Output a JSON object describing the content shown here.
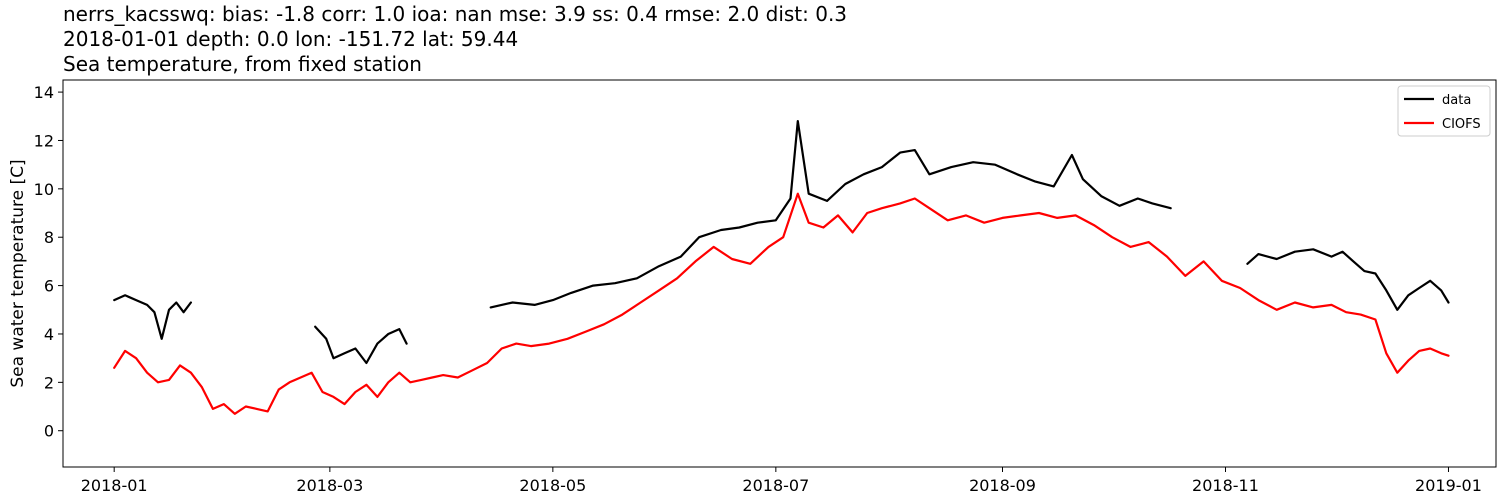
{
  "title": {
    "line1": "nerrs_kacsswq: bias: -1.8  corr: 1.0  ioa: nan  mse: 3.9  ss: 0.4  rmse: 2.0  dist: 0.3",
    "line2": "2018-01-01 depth: 0.0 lon: -151.72 lat: 59.44",
    "line3": "Sea temperature, from fixed station"
  },
  "chart_data": {
    "type": "line",
    "ylabel": "Sea water temperature [C]",
    "xlim": [
      "2017-12-18",
      "2019-01-14"
    ],
    "ylim": [
      -1.5,
      14.5
    ],
    "x_ticks": [
      "2018-01",
      "2018-03",
      "2018-05",
      "2018-07",
      "2018-09",
      "2018-11",
      "2019-01"
    ],
    "x_tick_dates": [
      "2018-01-01",
      "2018-03-01",
      "2018-05-01",
      "2018-07-01",
      "2018-09-01",
      "2018-11-01",
      "2019-01-01"
    ],
    "y_ticks": [
      0,
      2,
      4,
      6,
      8,
      10,
      12,
      14
    ],
    "grid": false,
    "legend": "top-right",
    "series": [
      {
        "name": "data",
        "color": "#000000",
        "segments": [
          {
            "x": [
              "2018-01-01",
              "2018-01-04",
              "2018-01-07",
              "2018-01-10",
              "2018-01-12",
              "2018-01-14",
              "2018-01-16",
              "2018-01-18",
              "2018-01-20",
              "2018-01-22"
            ],
            "y": [
              5.4,
              5.6,
              5.4,
              5.2,
              4.9,
              3.8,
              5.0,
              5.3,
              4.9,
              5.3
            ]
          },
          {
            "x": [
              "2018-02-25",
              "2018-02-28",
              "2018-03-02",
              "2018-03-05",
              "2018-03-08",
              "2018-03-11",
              "2018-03-14",
              "2018-03-17",
              "2018-03-20",
              "2018-03-22"
            ],
            "y": [
              4.3,
              3.8,
              3.0,
              3.2,
              3.4,
              2.8,
              3.6,
              4.0,
              4.2,
              3.6
            ]
          },
          {
            "x": [
              "2018-04-14",
              "2018-04-20",
              "2018-04-26",
              "2018-05-01",
              "2018-05-06",
              "2018-05-12",
              "2018-05-18",
              "2018-05-24",
              "2018-05-30",
              "2018-06-05",
              "2018-06-10",
              "2018-06-16",
              "2018-06-21",
              "2018-06-26",
              "2018-07-01",
              "2018-07-05",
              "2018-07-07",
              "2018-07-10",
              "2018-07-15",
              "2018-07-20",
              "2018-07-25",
              "2018-07-30",
              "2018-08-04",
              "2018-08-08",
              "2018-08-12",
              "2018-08-18",
              "2018-08-24",
              "2018-08-30",
              "2018-09-05",
              "2018-09-10",
              "2018-09-15",
              "2018-09-20",
              "2018-09-23",
              "2018-09-28",
              "2018-10-03",
              "2018-10-08",
              "2018-10-12",
              "2018-10-17"
            ],
            "y": [
              5.1,
              5.3,
              5.2,
              5.4,
              5.7,
              6.0,
              6.1,
              6.3,
              6.8,
              7.2,
              8.0,
              8.3,
              8.4,
              8.6,
              8.7,
              9.6,
              12.8,
              9.8,
              9.5,
              10.2,
              10.6,
              10.9,
              11.5,
              11.6,
              10.6,
              10.9,
              11.1,
              11.0,
              10.6,
              10.3,
              10.1,
              11.4,
              10.4,
              9.7,
              9.3,
              9.6,
              9.4,
              9.2
            ]
          },
          {
            "x": [
              "2018-11-07",
              "2018-11-10",
              "2018-11-15",
              "2018-11-20",
              "2018-11-25",
              "2018-11-30",
              "2018-12-03",
              "2018-12-06",
              "2018-12-09",
              "2018-12-12",
              "2018-12-15",
              "2018-12-18",
              "2018-12-21",
              "2018-12-24",
              "2018-12-27",
              "2018-12-30",
              "2019-01-01"
            ],
            "y": [
              6.9,
              7.3,
              7.1,
              7.4,
              7.5,
              7.2,
              7.4,
              7.0,
              6.6,
              6.5,
              5.8,
              5.0,
              5.6,
              5.9,
              6.2,
              5.8,
              5.3
            ]
          }
        ]
      },
      {
        "name": "CIOFS",
        "color": "#ff0000",
        "segments": [
          {
            "x": [
              "2018-01-01",
              "2018-01-04",
              "2018-01-07",
              "2018-01-10",
              "2018-01-13",
              "2018-01-16",
              "2018-01-19",
              "2018-01-22",
              "2018-01-25",
              "2018-01-28",
              "2018-01-31",
              "2018-02-03",
              "2018-02-06",
              "2018-02-09",
              "2018-02-12",
              "2018-02-15",
              "2018-02-18",
              "2018-02-21",
              "2018-02-24",
              "2018-02-27",
              "2018-03-02",
              "2018-03-05",
              "2018-03-08",
              "2018-03-11",
              "2018-03-14",
              "2018-03-17",
              "2018-03-20",
              "2018-03-23",
              "2018-03-26",
              "2018-03-29",
              "2018-04-01",
              "2018-04-05",
              "2018-04-09",
              "2018-04-13",
              "2018-04-17",
              "2018-04-21",
              "2018-04-25",
              "2018-04-30",
              "2018-05-05",
              "2018-05-10",
              "2018-05-15",
              "2018-05-20",
              "2018-05-25",
              "2018-05-30",
              "2018-06-04",
              "2018-06-09",
              "2018-06-14",
              "2018-06-19",
              "2018-06-24",
              "2018-06-29",
              "2018-07-03",
              "2018-07-07",
              "2018-07-10",
              "2018-07-14",
              "2018-07-18",
              "2018-07-22",
              "2018-07-26",
              "2018-07-30",
              "2018-08-04",
              "2018-08-08",
              "2018-08-12",
              "2018-08-17",
              "2018-08-22",
              "2018-08-27",
              "2018-09-01",
              "2018-09-06",
              "2018-09-11",
              "2018-09-16",
              "2018-09-21",
              "2018-09-26",
              "2018-10-01",
              "2018-10-06",
              "2018-10-11",
              "2018-10-16",
              "2018-10-21",
              "2018-10-26",
              "2018-10-31",
              "2018-11-05",
              "2018-11-10",
              "2018-11-15",
              "2018-11-20",
              "2018-11-25",
              "2018-11-30",
              "2018-12-04",
              "2018-12-08",
              "2018-12-12",
              "2018-12-15",
              "2018-12-18",
              "2018-12-21",
              "2018-12-24",
              "2018-12-27",
              "2018-12-30",
              "2019-01-01"
            ],
            "y": [
              2.6,
              3.3,
              3.0,
              2.4,
              2.0,
              2.1,
              2.7,
              2.4,
              1.8,
              0.9,
              1.1,
              0.7,
              1.0,
              0.9,
              0.8,
              1.7,
              2.0,
              2.2,
              2.4,
              1.6,
              1.4,
              1.1,
              1.6,
              1.9,
              1.4,
              2.0,
              2.4,
              2.0,
              2.1,
              2.2,
              2.3,
              2.2,
              2.5,
              2.8,
              3.4,
              3.6,
              3.5,
              3.6,
              3.8,
              4.1,
              4.4,
              4.8,
              5.3,
              5.8,
              6.3,
              7.0,
              7.6,
              7.1,
              6.9,
              7.6,
              8.0,
              9.8,
              8.6,
              8.4,
              8.9,
              8.2,
              9.0,
              9.2,
              9.4,
              9.6,
              9.2,
              8.7,
              8.9,
              8.6,
              8.8,
              8.9,
              9.0,
              8.8,
              8.9,
              8.5,
              8.0,
              7.6,
              7.8,
              7.2,
              6.4,
              7.0,
              6.2,
              5.9,
              5.4,
              5.0,
              5.3,
              5.1,
              5.2,
              4.9,
              4.8,
              4.6,
              3.2,
              2.4,
              2.9,
              3.3,
              3.4,
              3.2,
              3.1
            ]
          }
        ]
      }
    ]
  }
}
